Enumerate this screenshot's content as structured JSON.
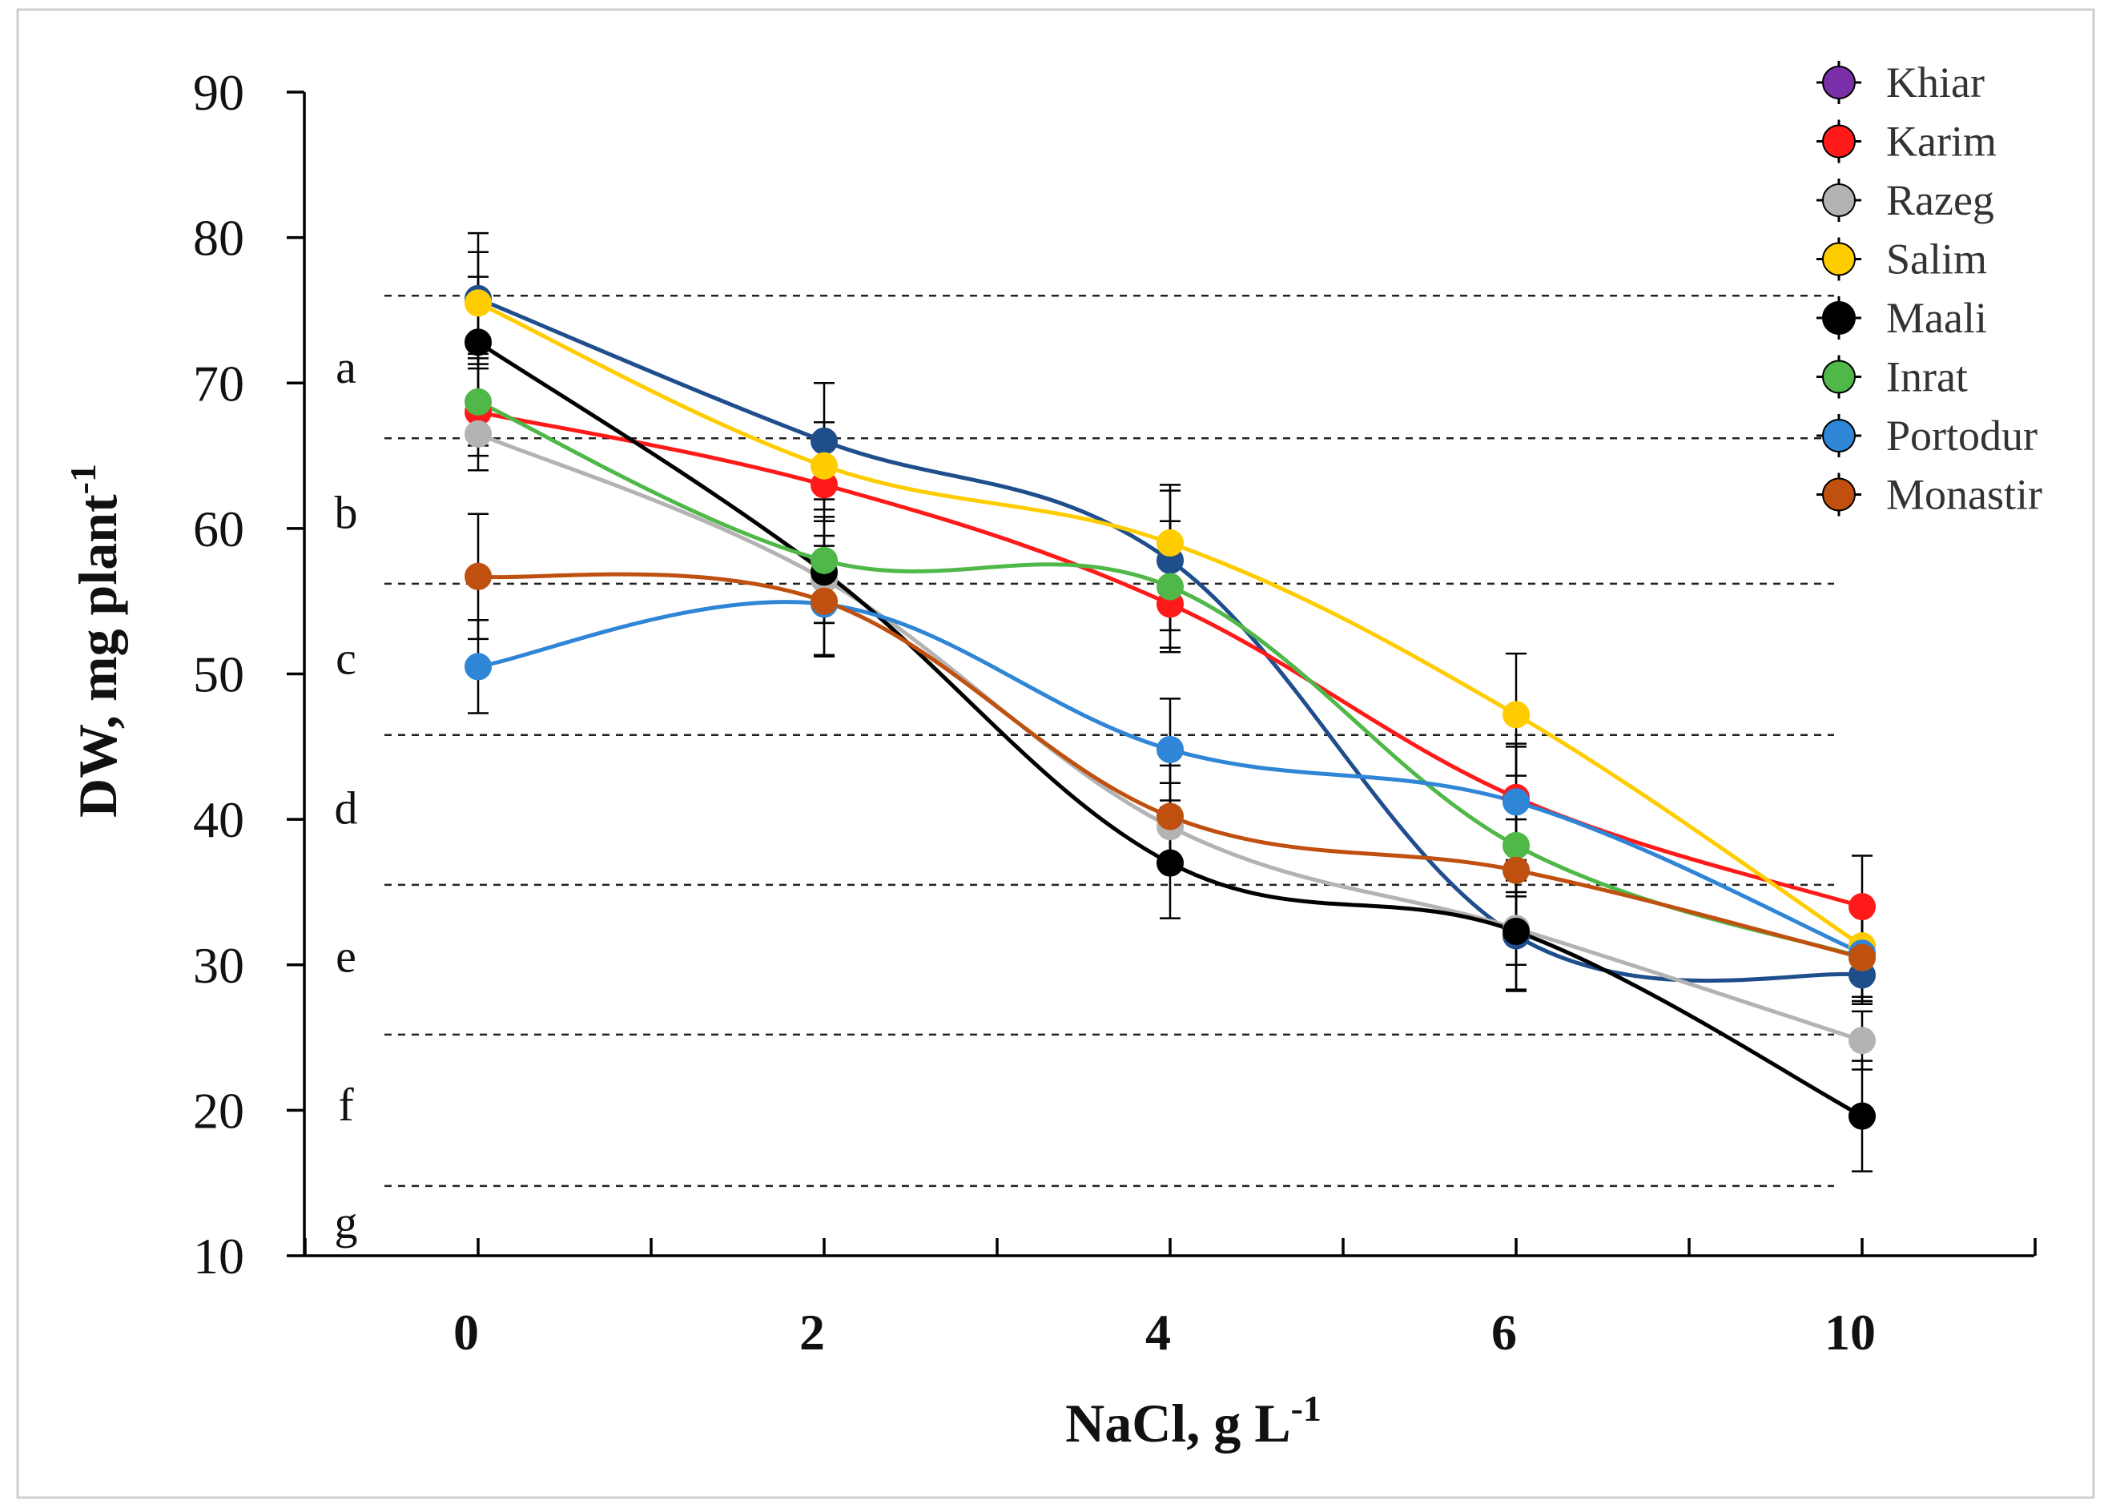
{
  "chart_data": {
    "type": "line",
    "title": "",
    "xlabel": "NaCl, g L",
    "xlabel_sup": "-1",
    "ylabel": "DW, mg plant",
    "ylabel_sup": "-1",
    "categories": [
      "0",
      "2",
      "4",
      "6",
      "10"
    ],
    "ylim": [
      10,
      90
    ],
    "yticks": [
      10,
      20,
      30,
      40,
      50,
      60,
      70,
      80,
      90
    ],
    "grid": false,
    "legend_position": "top-right",
    "series": [
      {
        "name": "Khiar",
        "color": "#7a2fa8",
        "values": [
          75.8,
          66.0,
          57.8,
          32.0,
          29.3
        ],
        "errors": [
          4.5,
          4.0,
          4.8,
          3.8,
          2.0
        ]
      },
      {
        "name": "Karim",
        "color": "#ff1a1a",
        "values": [
          68.0,
          63.0,
          54.8,
          41.5,
          34.0
        ],
        "errors": [
          3.0,
          2.5,
          3.0,
          3.5,
          3.5
        ]
      },
      {
        "name": "Razeg",
        "color": "#b3b3b3",
        "values": [
          66.5,
          56.5,
          39.5,
          32.5,
          24.8
        ],
        "errors": [
          2.5,
          3.0,
          3.0,
          2.5,
          2.0
        ]
      },
      {
        "name": "Salim",
        "color": "#ffcc00",
        "values": [
          75.5,
          64.3,
          59.0,
          47.2,
          31.3
        ],
        "errors": [
          3.5,
          3.0,
          4.0,
          4.2,
          2.5
        ]
      },
      {
        "name": "Maali",
        "color": "#000000",
        "values": [
          72.8,
          57.0,
          37.0,
          32.3,
          19.6
        ],
        "errors": [
          4.5,
          3.5,
          3.8,
          4.0,
          3.8
        ]
      },
      {
        "name": "Inrat",
        "color": "#4fb848",
        "values": [
          68.7,
          57.8,
          56.0,
          38.2,
          30.5
        ],
        "errors": [
          3.0,
          3.0,
          4.5,
          3.5,
          3.0
        ]
      },
      {
        "name": "Portodur",
        "color": "#2f85d6",
        "values": [
          50.5,
          54.8,
          44.8,
          41.2,
          30.8
        ],
        "errors": [
          3.2,
          3.5,
          3.5,
          4.0,
          3.0
        ]
      },
      {
        "name": "Monastir",
        "color": "#c0500f",
        "values": [
          56.7,
          55.0,
          40.2,
          36.5,
          30.5
        ],
        "errors": [
          4.3,
          3.8,
          3.5,
          3.5,
          3.0
        ]
      }
    ],
    "series_styles": {
      "Khiar": {
        "line_color": "#1f4e8c",
        "marker_color": "#1f4e8c"
      }
    },
    "reference_lines": [
      76,
      66.2,
      56.2,
      45.8,
      35.5,
      25.2,
      14.8
    ],
    "group_letters": [
      {
        "label": "a",
        "y": 71
      },
      {
        "label": "b",
        "y": 61
      },
      {
        "label": "c",
        "y": 51
      },
      {
        "label": "d",
        "y": 40.7
      },
      {
        "label": "e",
        "y": 30.5
      },
      {
        "label": "f",
        "y": 20.3
      },
      {
        "label": "g",
        "y": 12.2
      }
    ]
  }
}
